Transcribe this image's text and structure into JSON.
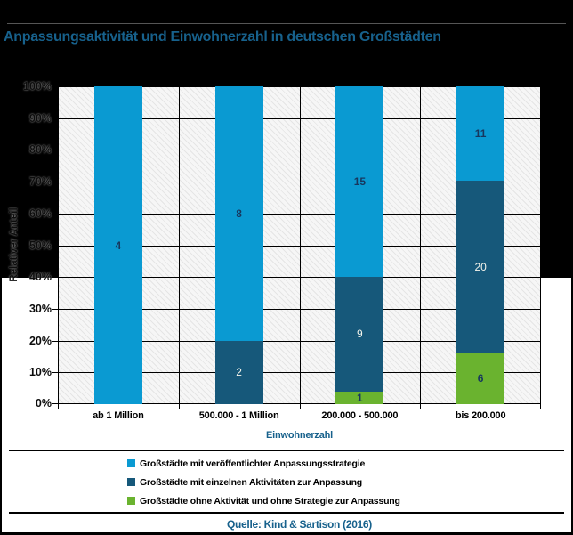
{
  "header": {
    "title": "Anpassungsaktivität und Einwohnerzahl in deutschen Großstädten"
  },
  "source": {
    "text": "Quelle: Kind & Sartison (2016)"
  },
  "colors": {
    "background_black": "#000000",
    "accent_teal": "#17618C",
    "series_light_blue": "#0A9AD2",
    "series_dark_blue": "#16587A",
    "series_green": "#6AB32F",
    "data_label_navy": "#17375E",
    "data_label_light": "#F5F5EC",
    "gridline": "#000000"
  },
  "chart_data": {
    "type": "bar",
    "variant": "stacked-100-percent",
    "title": "Anpassungsaktivität und Einwohnerzahl in deutschen Großstädten",
    "categories": [
      "ab 1 Million",
      "500.000 - 1 Million",
      "200.000 - 500.000",
      "bis 200.000"
    ],
    "series": [
      {
        "name": "Großstädte mit veröffentlichter Anpassungsstrategie",
        "values": [
          4,
          8,
          15,
          11
        ],
        "color": "#0A9AD2",
        "label_color": "#17375E"
      },
      {
        "name": "Großstädte mit einzelnen Aktivitäten zur Anpassung",
        "values": [
          0,
          2,
          9,
          20
        ],
        "color": "#16587A",
        "label_color": "#F5F5EC"
      },
      {
        "name": "Großstädte ohne Aktivität und ohne Strategie zur Anpassung",
        "values": [
          0,
          0,
          1,
          6
        ],
        "color": "#6AB32F",
        "label_color": "#17375E"
      }
    ],
    "xlabel": "Einwohnerzahl",
    "ylabel": "Relativer Anteil",
    "ylim": [
      0,
      100
    ],
    "yticks": [
      "0%",
      "10%",
      "20%",
      "30%",
      "40%",
      "50%",
      "60%",
      "70%",
      "80%",
      "90%",
      "100%"
    ],
    "grid": true,
    "legend_position": "bottom"
  }
}
